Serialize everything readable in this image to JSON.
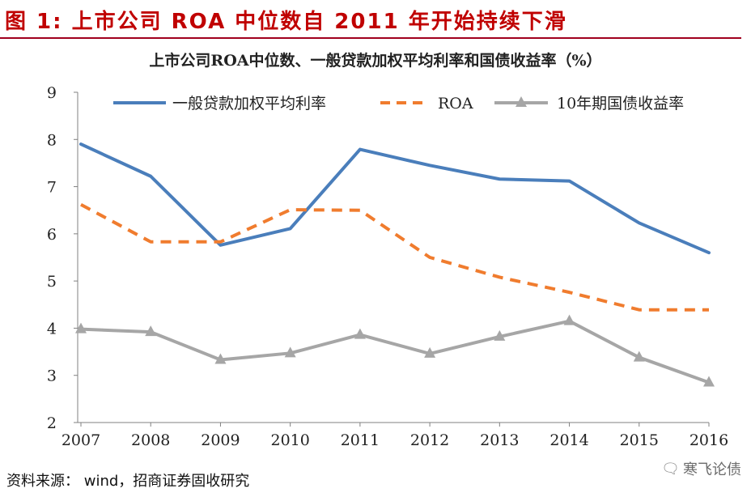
{
  "header": {
    "figure_title": "图 1: 上市公司 ROA 中位数自 2011 年开始持续下滑"
  },
  "chart_data": {
    "type": "line",
    "title": "上市公司ROA中位数、一般贷款加权平均利率和国债收益率（%）",
    "xlabel": "",
    "ylabel": "",
    "categories": [
      "2007",
      "2008",
      "2009",
      "2010",
      "2011",
      "2012",
      "2013",
      "2014",
      "2015",
      "2016"
    ],
    "ylim": [
      2,
      9
    ],
    "yticks": [
      2,
      3,
      4,
      5,
      6,
      7,
      8,
      9
    ],
    "grid": false,
    "legend_position": "top",
    "series": [
      {
        "name": "一般贷款加权平均利率",
        "values": [
          7.9,
          7.22,
          5.76,
          6.11,
          7.79,
          7.45,
          7.16,
          7.12,
          6.23,
          5.6
        ],
        "color": "#4a7ebb",
        "style": "solid",
        "marker": "none"
      },
      {
        "name": "ROA",
        "values": [
          6.62,
          5.83,
          5.83,
          6.51,
          6.5,
          5.5,
          5.08,
          4.76,
          4.39,
          4.39
        ],
        "color": "#f07c2e",
        "style": "dashed",
        "marker": "none"
      },
      {
        "name": "10年期国债收益率",
        "values": [
          3.98,
          3.92,
          3.33,
          3.47,
          3.86,
          3.46,
          3.82,
          4.15,
          3.38,
          2.85
        ],
        "color": "#a6a6a6",
        "style": "solid",
        "marker": "triangle"
      }
    ]
  },
  "footer": {
    "source": "资料来源： wind，招商证券固收研究"
  },
  "watermark": {
    "text": "寒飞论债",
    "icon": "wechat-icon"
  }
}
